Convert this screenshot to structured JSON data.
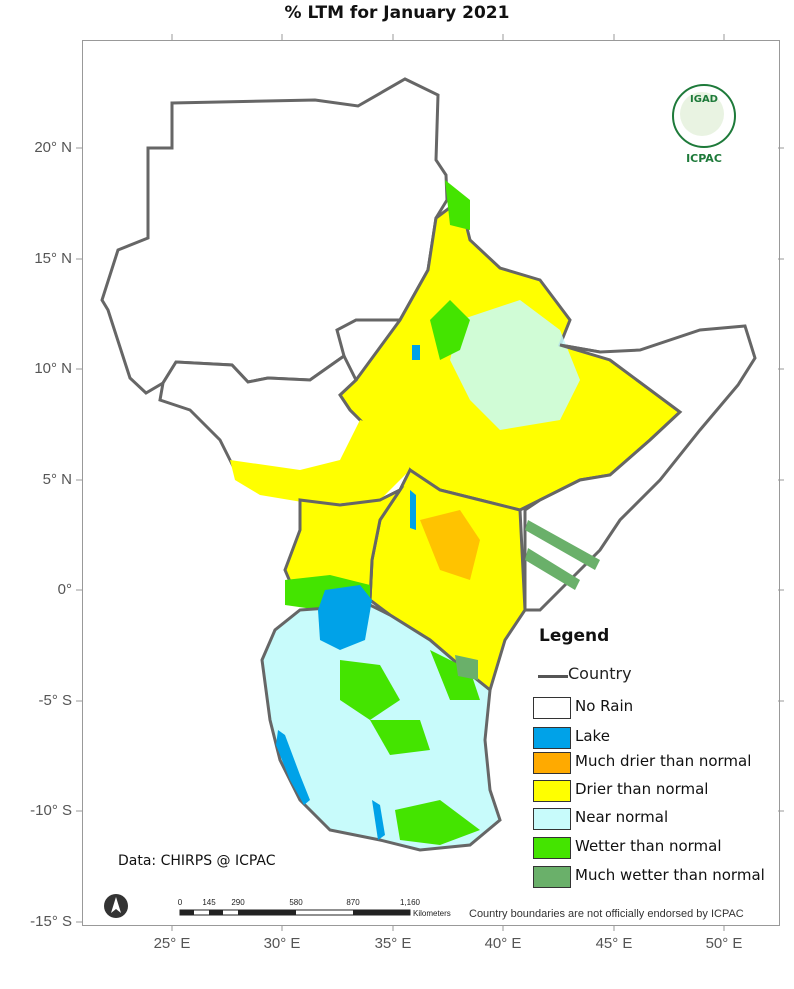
{
  "title": "% LTM  for   January 2021",
  "axes": {
    "lat_ticks": [
      "20° N",
      "15° N",
      "10° N",
      "5° N",
      "0°",
      "-5° S",
      "-10° S",
      "-15° S"
    ],
    "lon_ticks": [
      "25° E",
      "30° E",
      "35° E",
      "40° E",
      "45° E",
      "50° E"
    ]
  },
  "legend": {
    "title": "Legend",
    "country_label": "Country",
    "items": [
      {
        "label": "No Rain",
        "color": "#ffffff"
      },
      {
        "label": "Lake",
        "color": "#00a2e8"
      },
      {
        "label": "Much drier than normal",
        "color": "#ffaa00"
      },
      {
        "label": "Drier than normal",
        "color": "#ffff00"
      },
      {
        "label": "Near normal",
        "color": "#c8fbfb"
      },
      {
        "label": "Wetter than normal",
        "color": "#44e400"
      },
      {
        "label": "Much wetter than normal",
        "color": "#6ab06a"
      }
    ]
  },
  "logo": {
    "top_text": "IGAD",
    "bottom_text": "ICPAC"
  },
  "credit": "Data: CHIRPS @ ICPAC",
  "scale_bar": {
    "ticks": [
      "0",
      "145",
      "290",
      "580",
      "870",
      "1,160"
    ],
    "unit": "Kilometers"
  },
  "disclaimer": "Country boundaries are not officially endorsed by ICPAC",
  "north_arrow_icon": "north-arrow-icon",
  "colors": {
    "country_border": "#666666",
    "frame": "#999999"
  }
}
